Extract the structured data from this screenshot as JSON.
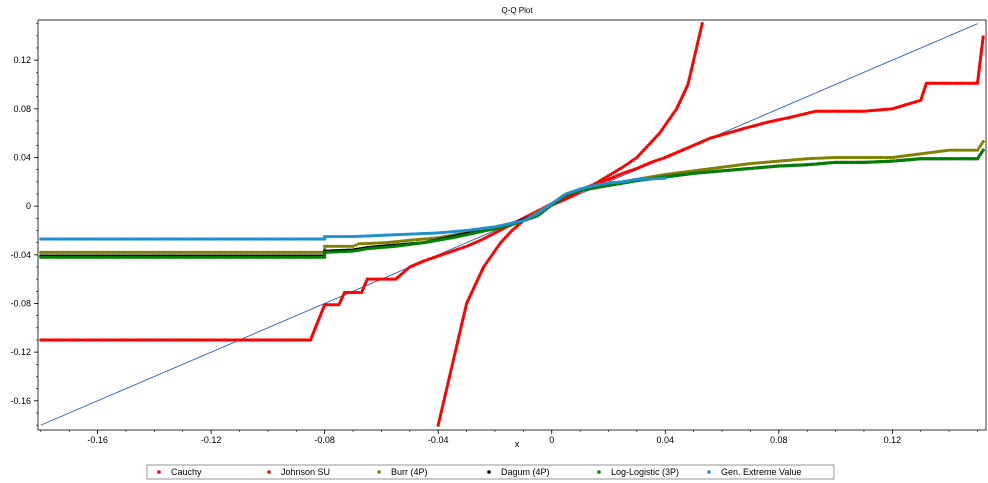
{
  "chart_data": {
    "type": "scatter",
    "title": "Q-Q Plot",
    "xlabel": "x",
    "ylabel": "",
    "xlim": [
      -0.181,
      0.153
    ],
    "ylim": [
      -0.184,
      0.153
    ],
    "x_ticks": [
      "-0.16",
      "-0.12",
      "-0.08",
      "-0.04",
      "0",
      "0.04",
      "0.08",
      "0.12"
    ],
    "x_tick_values": [
      -0.16,
      -0.12,
      -0.08,
      -0.04,
      0,
      0.04,
      0.08,
      0.12
    ],
    "y_ticks": [
      "0.12",
      "0.08",
      "0.04",
      "0",
      "-0.04",
      "-0.08",
      "-0.12",
      "-0.16"
    ],
    "y_tick_values": [
      0.12,
      0.08,
      0.04,
      0,
      -0.04,
      -0.08,
      -0.12,
      -0.16
    ],
    "grid": false,
    "legend_position": "bottom",
    "reference_line": {
      "x": [
        -0.18,
        0.15
      ],
      "y": [
        -0.18,
        0.15
      ],
      "color": "#2f62b5"
    },
    "series": [
      {
        "name": "Cauchy",
        "color": "#ff0000",
        "points": [
          [
            -0.18,
            -0.11
          ],
          [
            -0.16,
            -0.11
          ],
          [
            -0.14,
            -0.11
          ],
          [
            -0.12,
            -0.11
          ],
          [
            -0.1,
            -0.11
          ],
          [
            -0.085,
            -0.11
          ],
          [
            -0.08,
            -0.081
          ],
          [
            -0.075,
            -0.081
          ],
          [
            -0.073,
            -0.071
          ],
          [
            -0.067,
            -0.071
          ],
          [
            -0.065,
            -0.06
          ],
          [
            -0.055,
            -0.06
          ],
          [
            -0.05,
            -0.05
          ],
          [
            -0.045,
            -0.045
          ],
          [
            -0.04,
            -0.041
          ],
          [
            -0.035,
            -0.037
          ],
          [
            -0.03,
            -0.033
          ],
          [
            -0.025,
            -0.028
          ],
          [
            -0.02,
            -0.022
          ],
          [
            -0.015,
            -0.016
          ],
          [
            -0.01,
            -0.01
          ],
          [
            -0.005,
            -0.004
          ],
          [
            0,
            0.002
          ],
          [
            0.005,
            0.008
          ],
          [
            0.01,
            0.013
          ],
          [
            0.015,
            0.018
          ],
          [
            0.02,
            0.022
          ],
          [
            0.025,
            0.027
          ],
          [
            0.03,
            0.031
          ],
          [
            0.035,
            0.036
          ],
          [
            0.04,
            0.04
          ],
          [
            0.045,
            0.045
          ],
          [
            0.05,
            0.05
          ],
          [
            0.056,
            0.056
          ],
          [
            0.062,
            0.06
          ],
          [
            0.068,
            0.064
          ],
          [
            0.076,
            0.069
          ],
          [
            0.084,
            0.073
          ],
          [
            0.093,
            0.078
          ],
          [
            0.105,
            0.078
          ],
          [
            0.11,
            0.078
          ],
          [
            0.12,
            0.08
          ],
          [
            0.13,
            0.087
          ],
          [
            0.132,
            0.101
          ],
          [
            0.14,
            0.101
          ],
          [
            0.15,
            0.101
          ],
          [
            0.152,
            0.139
          ]
        ]
      },
      {
        "name": "Johnson SU",
        "color": "#ff0000",
        "points": [
          [
            -0.04,
            -0.18
          ],
          [
            -0.039,
            -0.17
          ],
          [
            -0.038,
            -0.16
          ],
          [
            -0.037,
            -0.15
          ],
          [
            -0.036,
            -0.14
          ],
          [
            -0.035,
            -0.13
          ],
          [
            -0.034,
            -0.12
          ],
          [
            -0.033,
            -0.11
          ],
          [
            -0.032,
            -0.1
          ],
          [
            -0.031,
            -0.09
          ],
          [
            -0.03,
            -0.08
          ],
          [
            -0.028,
            -0.07
          ],
          [
            -0.026,
            -0.06
          ],
          [
            -0.024,
            -0.05
          ],
          [
            -0.021,
            -0.04
          ],
          [
            -0.018,
            -0.03
          ],
          [
            -0.014,
            -0.02
          ],
          [
            -0.01,
            -0.012
          ],
          [
            -0.006,
            -0.006
          ],
          [
            -0.002,
            -0.001
          ],
          [
            0,
            0.001
          ],
          [
            0.005,
            0.006
          ],
          [
            0.01,
            0.012
          ],
          [
            0.015,
            0.018
          ],
          [
            0.02,
            0.025
          ],
          [
            0.025,
            0.032
          ],
          [
            0.03,
            0.04
          ],
          [
            0.034,
            0.05
          ],
          [
            0.038,
            0.06
          ],
          [
            0.041,
            0.07
          ],
          [
            0.044,
            0.08
          ],
          [
            0.046,
            0.09
          ],
          [
            0.048,
            0.1
          ],
          [
            0.049,
            0.11
          ],
          [
            0.05,
            0.12
          ],
          [
            0.051,
            0.13
          ],
          [
            0.052,
            0.14
          ],
          [
            0.053,
            0.15
          ]
        ]
      },
      {
        "name": "Burr (4P)",
        "color": "#808000",
        "points": [
          [
            -0.18,
            -0.038
          ],
          [
            -0.15,
            -0.038
          ],
          [
            -0.12,
            -0.038
          ],
          [
            -0.1,
            -0.038
          ],
          [
            -0.08,
            -0.038
          ],
          [
            -0.08,
            -0.033
          ],
          [
            -0.07,
            -0.033
          ],
          [
            -0.068,
            -0.031
          ],
          [
            -0.058,
            -0.03
          ],
          [
            -0.05,
            -0.028
          ],
          [
            -0.04,
            -0.026
          ],
          [
            -0.03,
            -0.022
          ],
          [
            -0.02,
            -0.018
          ],
          [
            -0.01,
            -0.012
          ],
          [
            0,
            0.002
          ],
          [
            0.005,
            0.01
          ],
          [
            0.01,
            0.014
          ],
          [
            0.02,
            0.018
          ],
          [
            0.03,
            0.022
          ],
          [
            0.04,
            0.026
          ],
          [
            0.05,
            0.029
          ],
          [
            0.06,
            0.032
          ],
          [
            0.07,
            0.035
          ],
          [
            0.08,
            0.037
          ],
          [
            0.09,
            0.039
          ],
          [
            0.1,
            0.04
          ],
          [
            0.11,
            0.04
          ],
          [
            0.12,
            0.04
          ],
          [
            0.13,
            0.043
          ],
          [
            0.14,
            0.046
          ],
          [
            0.15,
            0.046
          ],
          [
            0.152,
            0.053
          ]
        ]
      },
      {
        "name": "Dagum (4P)",
        "color": "#000000",
        "points": [
          [
            -0.18,
            -0.041
          ],
          [
            -0.15,
            -0.041
          ],
          [
            -0.12,
            -0.041
          ],
          [
            -0.1,
            -0.041
          ],
          [
            -0.08,
            -0.041
          ],
          [
            -0.08,
            -0.037
          ],
          [
            -0.07,
            -0.036
          ],
          [
            -0.065,
            -0.034
          ],
          [
            -0.055,
            -0.032
          ],
          [
            -0.045,
            -0.03
          ],
          [
            -0.035,
            -0.025
          ],
          [
            -0.025,
            -0.02
          ],
          [
            -0.015,
            -0.015
          ],
          [
            -0.005,
            -0.007
          ],
          [
            0,
            0.001
          ],
          [
            0.005,
            0.009
          ],
          [
            0.01,
            0.013
          ],
          [
            0.02,
            0.017
          ],
          [
            0.03,
            0.021
          ],
          [
            0.04,
            0.024
          ],
          [
            0.05,
            0.027
          ],
          [
            0.06,
            0.029
          ],
          [
            0.07,
            0.031
          ],
          [
            0.08,
            0.033
          ],
          [
            0.09,
            0.034
          ],
          [
            0.1,
            0.036
          ],
          [
            0.11,
            0.036
          ],
          [
            0.12,
            0.037
          ],
          [
            0.13,
            0.039
          ],
          [
            0.14,
            0.039
          ],
          [
            0.15,
            0.039
          ],
          [
            0.152,
            0.046
          ]
        ]
      },
      {
        "name": "Log-Logistic (3P)",
        "color": "#008000",
        "points": [
          [
            -0.18,
            -0.042
          ],
          [
            -0.15,
            -0.042
          ],
          [
            -0.12,
            -0.042
          ],
          [
            -0.1,
            -0.042
          ],
          [
            -0.08,
            -0.042
          ],
          [
            -0.08,
            -0.038
          ],
          [
            -0.07,
            -0.037
          ],
          [
            -0.065,
            -0.035
          ],
          [
            -0.055,
            -0.033
          ],
          [
            -0.045,
            -0.03
          ],
          [
            -0.035,
            -0.026
          ],
          [
            -0.025,
            -0.021
          ],
          [
            -0.015,
            -0.016
          ],
          [
            -0.005,
            -0.008
          ],
          [
            0,
            0.001
          ],
          [
            0.005,
            0.009
          ],
          [
            0.01,
            0.013
          ],
          [
            0.02,
            0.017
          ],
          [
            0.03,
            0.021
          ],
          [
            0.04,
            0.024
          ],
          [
            0.05,
            0.027
          ],
          [
            0.06,
            0.029
          ],
          [
            0.07,
            0.031
          ],
          [
            0.08,
            0.033
          ],
          [
            0.09,
            0.034
          ],
          [
            0.1,
            0.036
          ],
          [
            0.11,
            0.036
          ],
          [
            0.12,
            0.037
          ],
          [
            0.13,
            0.039
          ],
          [
            0.14,
            0.039
          ],
          [
            0.15,
            0.039
          ],
          [
            0.152,
            0.046
          ]
        ]
      },
      {
        "name": "Gen. Extreme Value",
        "color": "#1f8fd0",
        "points": [
          [
            -0.18,
            -0.027
          ],
          [
            -0.15,
            -0.027
          ],
          [
            -0.12,
            -0.027
          ],
          [
            -0.1,
            -0.027
          ],
          [
            -0.08,
            -0.027
          ],
          [
            -0.08,
            -0.025
          ],
          [
            -0.07,
            -0.025
          ],
          [
            -0.06,
            -0.024
          ],
          [
            -0.05,
            -0.023
          ],
          [
            -0.04,
            -0.022
          ],
          [
            -0.03,
            -0.02
          ],
          [
            -0.02,
            -0.017
          ],
          [
            -0.01,
            -0.012
          ],
          [
            -0.005,
            -0.006
          ],
          [
            0,
            0.002
          ],
          [
            0.005,
            0.01
          ],
          [
            0.01,
            0.014
          ],
          [
            0.015,
            0.017
          ],
          [
            0.02,
            0.019
          ],
          [
            0.025,
            0.02
          ],
          [
            0.03,
            0.022
          ],
          [
            0.04,
            0.023
          ]
        ]
      }
    ]
  }
}
